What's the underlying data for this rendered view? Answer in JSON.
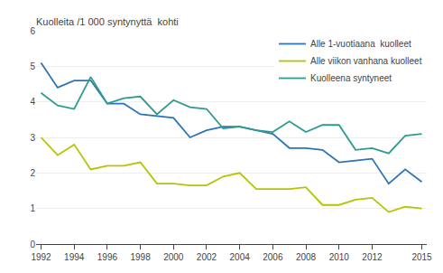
{
  "chart_data": {
    "type": "line",
    "title": "Kuolleita /1 000 syntynyttä  kohti",
    "x": [
      1992,
      1993,
      1994,
      1995,
      1996,
      1997,
      1998,
      1999,
      2000,
      2001,
      2002,
      2003,
      2004,
      2005,
      2006,
      2007,
      2008,
      2009,
      2010,
      2011,
      2012,
      2013,
      2014,
      2015
    ],
    "series": [
      {
        "name": "Alle 1-vuotiaana  kuolleet",
        "color": "#2E74B5",
        "values": [
          5.1,
          4.4,
          4.6,
          4.6,
          3.95,
          3.95,
          3.65,
          3.6,
          3.55,
          3.0,
          3.2,
          3.3,
          3.3,
          3.2,
          3.1,
          2.7,
          2.7,
          2.65,
          2.3,
          2.35,
          2.4,
          1.7,
          2.1,
          1.75
        ]
      },
      {
        "name": "Alle viikon vanhana kuolleet",
        "color": "#B5C400",
        "values": [
          3.0,
          2.5,
          2.8,
          2.1,
          2.2,
          2.2,
          2.3,
          1.7,
          1.7,
          1.65,
          1.65,
          1.9,
          2.0,
          1.55,
          1.55,
          1.55,
          1.6,
          1.1,
          1.1,
          1.25,
          1.3,
          0.9,
          1.05,
          1.0
        ]
      },
      {
        "name": "Kuolleena syntyneet",
        "color": "#2E9B8F",
        "values": [
          4.25,
          3.9,
          3.8,
          4.7,
          3.95,
          4.1,
          4.15,
          3.65,
          4.05,
          3.85,
          3.8,
          3.25,
          3.3,
          3.2,
          3.15,
          3.45,
          3.15,
          3.35,
          3.35,
          2.65,
          2.7,
          2.55,
          3.05,
          3.1
        ]
      }
    ],
    "xlim": [
      1991.7,
      2015.3
    ],
    "xticks": [
      1992,
      1994,
      1996,
      1998,
      2000,
      2002,
      2004,
      2006,
      2008,
      2010,
      2012,
      2015
    ],
    "ylim": [
      0,
      6
    ],
    "yticks": [
      0,
      1,
      2,
      3,
      4,
      5,
      6
    ],
    "grid": true,
    "legend": "upper right"
  }
}
